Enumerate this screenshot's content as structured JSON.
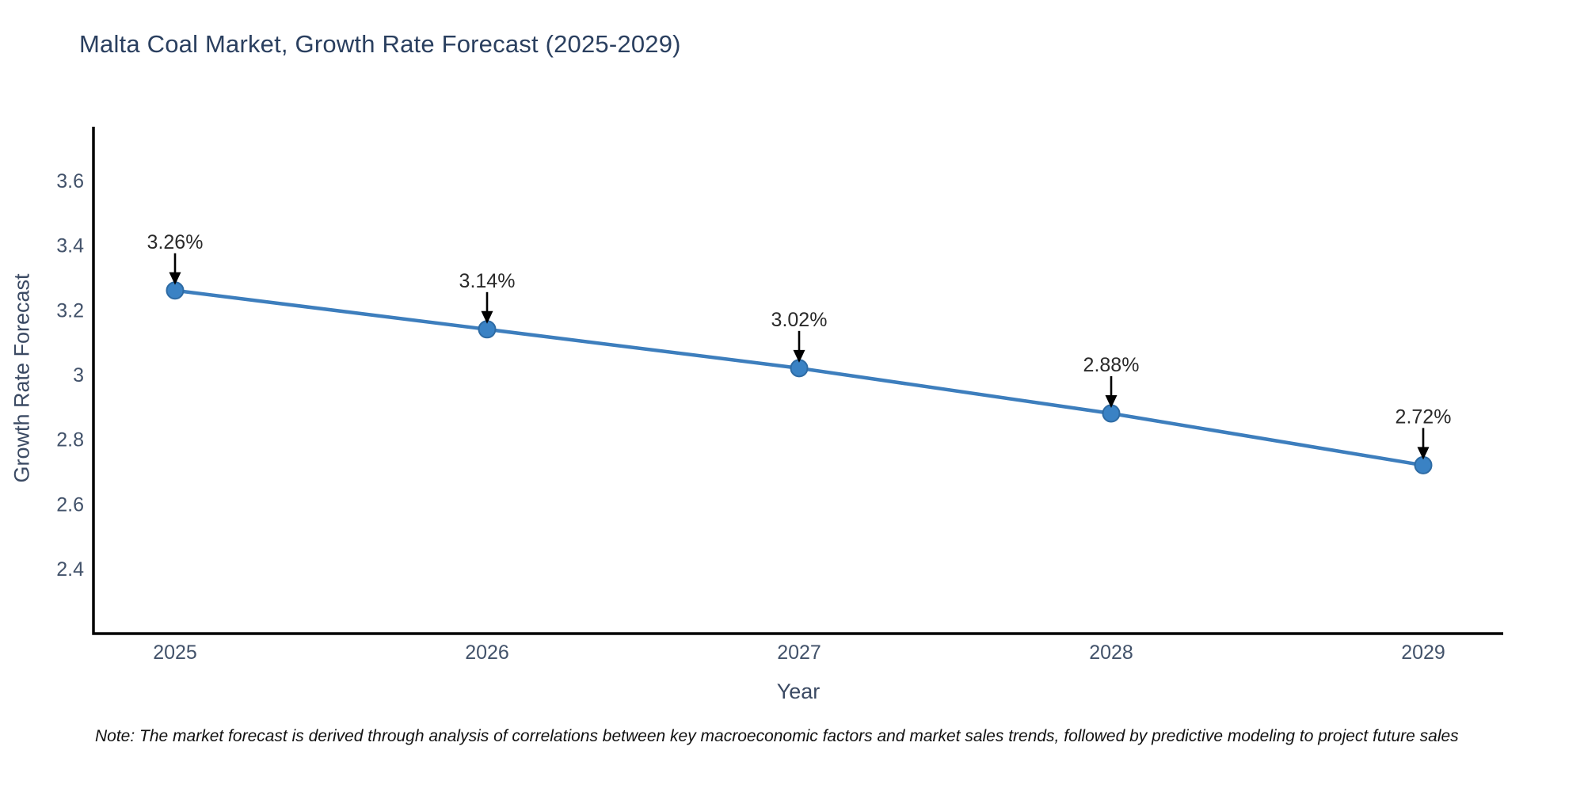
{
  "chart_data": {
    "type": "line",
    "title": "Malta Coal Market, Growth Rate Forecast (2025-2029)",
    "xlabel": "Year",
    "ylabel": "Growth Rate Forecast",
    "categories": [
      "2025",
      "2026",
      "2027",
      "2028",
      "2029"
    ],
    "values": [
      3.26,
      3.14,
      3.02,
      2.88,
      2.72
    ],
    "point_labels": [
      "3.26%",
      "3.14%",
      "3.02%",
      "2.88%",
      "2.72%"
    ],
    "ytick_values": [
      3.6,
      3.4,
      3.2,
      3.0,
      2.8,
      2.6,
      2.4
    ],
    "ytick_labels": [
      "3.6",
      "3.4",
      "3.2",
      "3",
      "2.8",
      "2.6",
      "2.4"
    ],
    "ylim": [
      2.2,
      3.77
    ],
    "grid": false,
    "legend_position": "none",
    "annotation_style": "down-arrow",
    "colors": {
      "line": "#3d7ebd",
      "marker_fill": "#3a82c4",
      "marker_edge": "#2e6ba4",
      "axis": "#000000",
      "title": "#2a3f5f",
      "axis_label": "#3b4a63",
      "tick_label": "#42526a",
      "point_label": "#2a2a2a",
      "arrow": "#000000",
      "background": "#ffffff"
    }
  },
  "footnote": {
    "text": "Note: The market forecast is derived through analysis of correlations between key macroeconomic factors and market sales trends, followed by predictive modeling to project future sales"
  }
}
